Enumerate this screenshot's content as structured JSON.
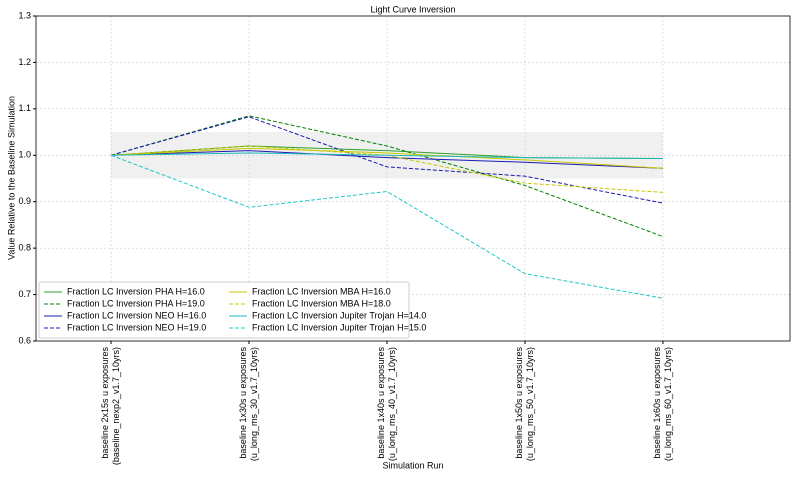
{
  "chart_data": {
    "type": "line",
    "title": "Light Curve Inversion",
    "x_label": "Simulation Run",
    "y_label": "Value Relative to the Baseline Simulation",
    "categories": [
      "baseline 2x15s u exposures\n(baseline_nexp2_v1.7_10yrs)",
      "baseline 1x30s u exposures\n(u_long_ms_30_v1.7_10yrs)",
      "baseline 1x40s u exposures\n(u_long_ms_40_v1.7_10yrs)",
      "baseline 1x50s u exposures\n(u_long_ms_50_v1.7_10yrs)",
      "baseline 1x60s u exposures\n(u_long_ms_60_v1.7_10yrs)"
    ],
    "series": [
      {
        "name": "Fraction LC Inversion PHA H=16.0",
        "color": "#2ca02c",
        "linestyle": "solid",
        "values": [
          1.0,
          1.02,
          1.01,
          0.995,
          0.993
        ]
      },
      {
        "name": "Fraction LC Inversion PHA H=19.0",
        "color": "#008000",
        "linestyle": "dashed",
        "values": [
          1.0,
          1.085,
          1.02,
          0.935,
          0.825
        ]
      },
      {
        "name": "Fraction LC Inversion NEO H=16.0",
        "color": "#1a1ab4",
        "linestyle": "solid",
        "values": [
          1.0,
          1.01,
          0.995,
          0.985,
          0.972
        ]
      },
      {
        "name": "Fraction LC Inversion NEO H=19.0",
        "color": "#1a1ab4",
        "linestyle": "dashed",
        "values": [
          1.0,
          1.083,
          0.975,
          0.955,
          0.897
        ]
      },
      {
        "name": "Fraction LC Inversion MBA H=16.0",
        "color": "#c8c800",
        "linestyle": "solid",
        "values": [
          1.0,
          1.015,
          1.005,
          0.99,
          0.972
        ]
      },
      {
        "name": "Fraction LC Inversion MBA H=18.0",
        "color": "#c8c800",
        "linestyle": "dashed",
        "values": [
          1.0,
          1.02,
          1.0,
          0.94,
          0.92
        ]
      },
      {
        "name": "Fraction LC Inversion Jupiter Trojan H=14.0",
        "color": "#1fb8b8",
        "linestyle": "solid",
        "values": [
          1.0,
          1.005,
          1.0,
          0.995,
          0.993
        ]
      },
      {
        "name": "Fraction LC Inversion Jupiter Trojan H=15.0",
        "color": "#1fc8c8",
        "linestyle": "dashed",
        "values": [
          1.0,
          0.888,
          0.922,
          0.745,
          0.692
        ]
      }
    ],
    "band": [
      0.95,
      1.05
    ],
    "ylim": [
      0.6,
      1.3
    ],
    "yticks": [
      0.6,
      0.7,
      0.8,
      0.9,
      {
        "value": 1,
        "label": "1.0"
      },
      1.1,
      1.2,
      1.3
    ],
    "grid": true,
    "legend": "lower left"
  }
}
